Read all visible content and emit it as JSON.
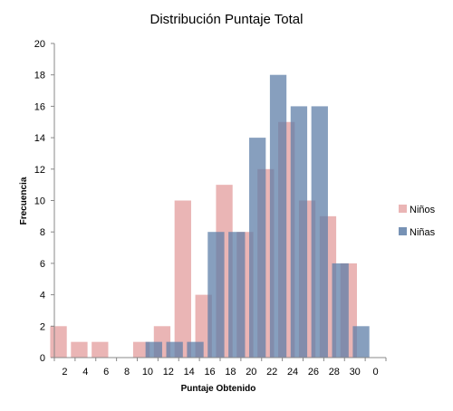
{
  "chart_data": {
    "type": "bar",
    "title": "Distribución Puntaje Total",
    "xlabel": "Puntaje Obtenido",
    "ylabel": "Frecuencia",
    "categories": [
      "2",
      "4",
      "6",
      "8",
      "10",
      "12",
      "14",
      "16",
      "18",
      "20",
      "22",
      "24",
      "26",
      "28",
      "30",
      "0"
    ],
    "y_ticks": [
      "0",
      "2",
      "4",
      "6",
      "8",
      "10",
      "12",
      "14",
      "16",
      "18",
      "20"
    ],
    "ylim": [
      0,
      20
    ],
    "grid": false,
    "legend_position": "right",
    "overlap": true,
    "series": [
      {
        "name": "Niños",
        "color": "#e6a8a8",
        "values": [
          2,
          1,
          1,
          0,
          1,
          2,
          10,
          4,
          11,
          8,
          12,
          15,
          10,
          9,
          6,
          0
        ]
      },
      {
        "name": "Niñas",
        "color": "#5f7fa8",
        "values": [
          0,
          0,
          0,
          0,
          1,
          1,
          1,
          8,
          8,
          14,
          18,
          16,
          16,
          6,
          2,
          0
        ]
      }
    ]
  }
}
